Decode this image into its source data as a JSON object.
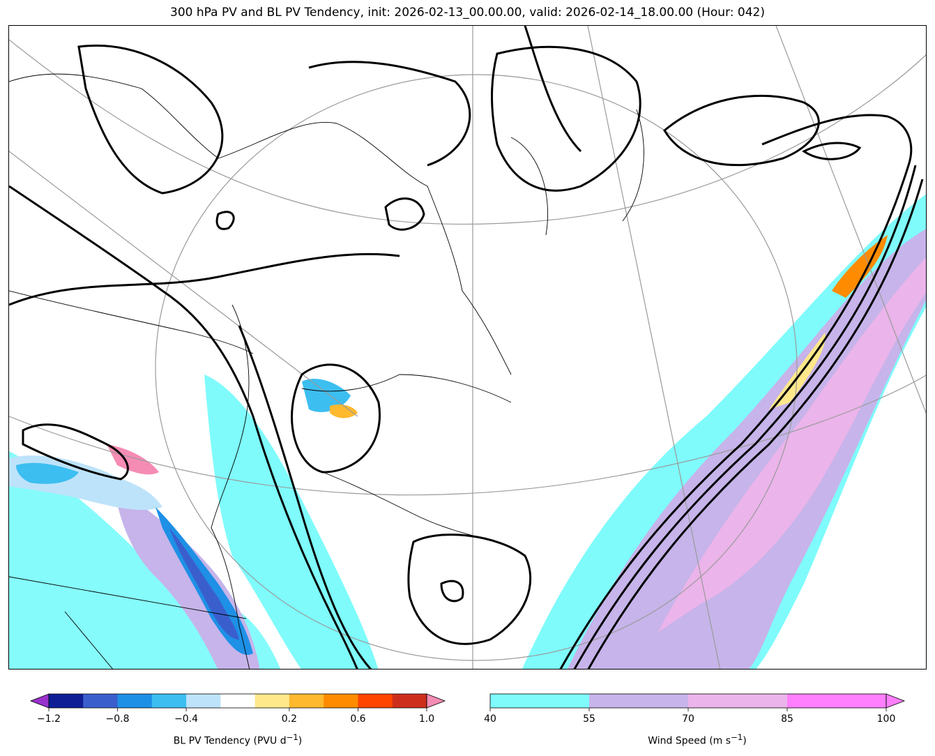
{
  "title": "300 hPa PV and BL PV Tendency, init: 2026-02-13_00.00.00, valid: 2026-02-14_18.00.00 (Hour: 042)",
  "colorbar_pv": {
    "label": "BL PV Tendency (PVU d",
    "label_sup": "−1",
    "label_end": ")",
    "ticks": [
      "−1.2",
      "−0.8",
      "−0.4",
      "0.2",
      "0.6",
      "1.0"
    ],
    "colors": [
      "#9932cc",
      "#101e96",
      "#3a5fcd",
      "#1e90e6",
      "#3cbef0",
      "#bde3fa",
      "#ffffff",
      "#ffe88a",
      "#ffb92e",
      "#ff8c00",
      "#ff4500",
      "#cd2e1b",
      "#f58cb4"
    ]
  },
  "colorbar_wind": {
    "label": "Wind Speed (m s",
    "label_sup": "−1",
    "label_end": ")",
    "ticks": [
      "40",
      "55",
      "70",
      "85",
      "100"
    ],
    "colors": [
      "#7ffbfb",
      "#c6b4ea",
      "#ebb4ea",
      "#ff7fff"
    ]
  },
  "map": {
    "projection": "polar stereographic",
    "features": [
      "coastlines",
      "country borders",
      "state/province borders",
      "lat/lon grid"
    ],
    "pv_contour_color": "#000000",
    "jet_colors": [
      "#7ffbfb",
      "#c6b4ea",
      "#ebb4ea"
    ]
  }
}
